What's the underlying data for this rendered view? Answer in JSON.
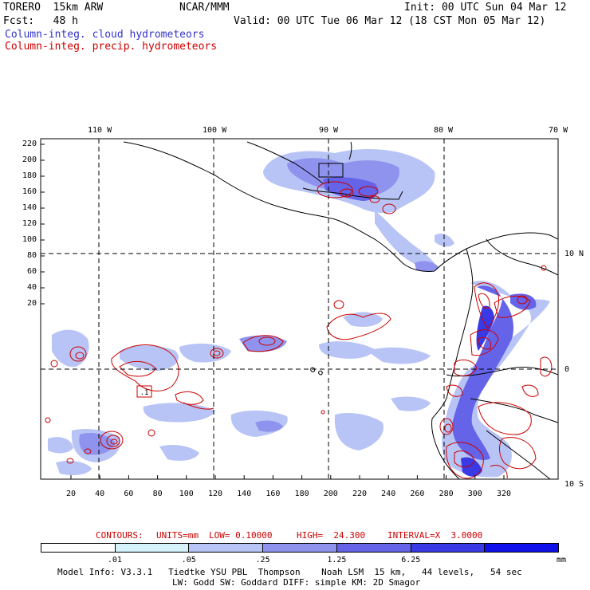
{
  "header": {
    "model": "TORERO  15km ARW",
    "org": "NCAR/MMM",
    "init": "Init: 00 UTC Sun 04 Mar 12",
    "fcst": "Fcst:   48 h",
    "valid": "Valid: 00 UTC Tue 06 Mar 12 (18 CST Mon 05 Mar 12)"
  },
  "legend": {
    "cloud": "Column-integ. cloud hydrometeors",
    "precip": "Column-integ. precip. hydrometeors"
  },
  "colors": {
    "cloud": "#3333cc",
    "precip": "#cc0000",
    "contour": "#cc0000",
    "coast": "#000000"
  },
  "map": {
    "lon_labels": [
      "110 W",
      "100 W",
      "90 W",
      "80 W",
      "70 W"
    ],
    "lat_labels": [
      "10 N",
      "0",
      "10 S"
    ],
    "y_ticks": [
      "220",
      "200",
      "180",
      "160",
      "140",
      "120",
      "100",
      "80",
      "60",
      "40",
      "20"
    ],
    "x_ticks": [
      "20",
      "40",
      "60",
      "80",
      "100",
      "120",
      "140",
      "160",
      "180",
      "200",
      "220",
      "240",
      "260",
      "280",
      "300",
      "320"
    ],
    "contour_label": ".1"
  },
  "contour_info": {
    "contours": "CONTOURS:",
    "units": "UNITS=mm",
    "low": "LOW= 0.10000",
    "high": "HIGH=  24.300",
    "interval": "INTERVAL=X  3.0000"
  },
  "colorbar": {
    "labels": [
      ".01",
      ".05",
      ".25",
      "1.25",
      "6.25"
    ],
    "units": "mm",
    "bins": [
      {
        "color": "#ffffff"
      },
      {
        "color": "#d6f2fb"
      },
      {
        "color": "#b8c4f5"
      },
      {
        "color": "#8f93ee"
      },
      {
        "color": "#6563e8"
      },
      {
        "color": "#3939e6"
      },
      {
        "color": "#1010ea"
      }
    ]
  },
  "footer": {
    "line1": "Model Info: V3.3.1   Tiedtke YSU PBL  Thompson    Noah LSM  15 km,   44 levels,   54 sec",
    "line2": "LW: Godd SW: Goddard DIFF: simple KM: 2D Smagor"
  }
}
